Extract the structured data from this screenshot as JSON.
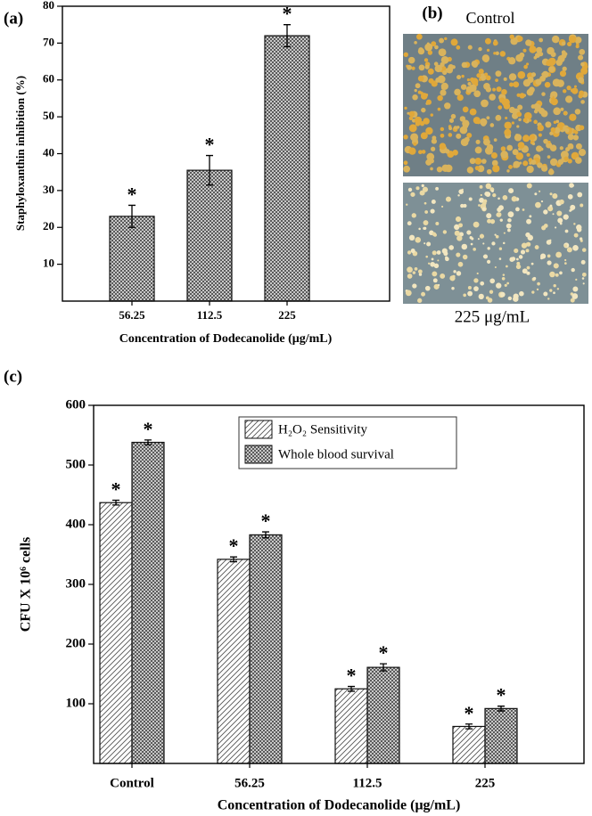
{
  "chart_data": [
    {
      "type": "bar",
      "panel": "(a)",
      "ylabel": "Staphyloxanthin inhibition (%)",
      "xlabel": "Concentration of Dodecanolide (μg/mL)",
      "categories": [
        "56.25",
        "112.5",
        "225"
      ],
      "series": [
        {
          "hatch": "cross",
          "color": "#555555",
          "values": [
            23,
            35.5,
            72
          ],
          "errors": [
            3,
            4,
            3
          ],
          "markers": [
            "*",
            "*",
            "*"
          ]
        }
      ],
      "ylim": [
        0,
        80
      ],
      "yticks": [
        10,
        20,
        30,
        40,
        50,
        60,
        70,
        80
      ]
    },
    {
      "type": "bar",
      "panel": "(c)",
      "ylabel": "CFU X 10⁶ cells",
      "xlabel": "Concentration of Dodecanolide (μg/mL)",
      "categories": [
        "Control",
        "56.25",
        "112.5",
        "225"
      ],
      "series": [
        {
          "name": "H₂O₂ Sensitivity",
          "hatch": "diagonal",
          "color": "#555555",
          "values": [
            437,
            342,
            125,
            62
          ],
          "errors": [
            4,
            4,
            4,
            4
          ],
          "markers": [
            "*",
            "*",
            "*",
            "*"
          ]
        },
        {
          "name": "Whole blood survival",
          "hatch": "cross",
          "color": "#555555",
          "values": [
            538,
            383,
            161,
            92
          ],
          "errors": [
            4,
            5,
            6,
            4
          ],
          "markers": [
            "*",
            "*",
            "*",
            "*"
          ]
        }
      ],
      "ylim": [
        0,
        600
      ],
      "yticks": [
        100,
        200,
        300,
        400,
        500,
        600
      ],
      "legend": "top-center"
    }
  ],
  "panel_b": {
    "label": "(b)",
    "top_caption": "Control",
    "bottom_caption": "225 μg/mL"
  }
}
